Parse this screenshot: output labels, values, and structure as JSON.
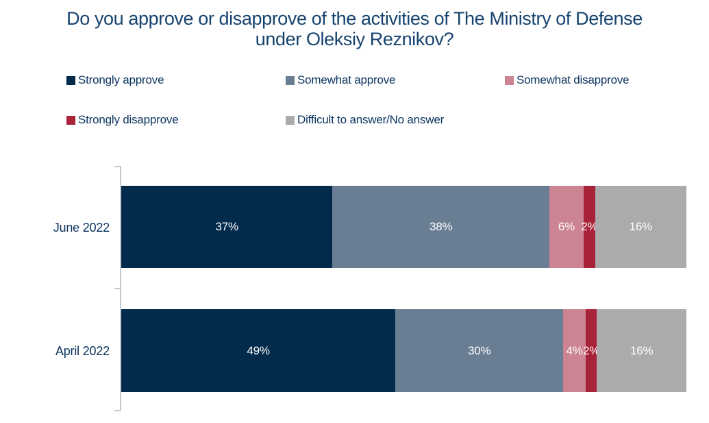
{
  "title_lines": [
    "Do you approve or disapprove of the activities of The Ministry of Defense",
    "under Oleksiy Reznikov?"
  ],
  "colors": {
    "title_text": "#16436f",
    "legend_text": "#0e3560",
    "category_text": "#0e3560",
    "axis_line": "#c4c8cf",
    "bar_value_text": "#ffffff",
    "background": "#ffffff"
  },
  "chart_data": {
    "type": "bar",
    "stacked": true,
    "orientation": "horizontal",
    "title": "Do you approve or disapprove of the activities of The Ministry of Defense under Oleksiy Reznikov?",
    "categories": [
      "June 2022",
      "April 2022"
    ],
    "series": [
      {
        "name": "Strongly approve",
        "color": "#022a4a",
        "values": [
          37,
          49
        ]
      },
      {
        "name": "Somewhat approve",
        "color": "#697e93",
        "values": [
          38,
          30
        ]
      },
      {
        "name": "Somewhat disapprove",
        "color": "#cc8492",
        "values": [
          6,
          4
        ]
      },
      {
        "name": "Strongly disapprove",
        "color": "#a82339",
        "values": [
          2,
          2
        ]
      },
      {
        "name": "Difficult to answer/No answer",
        "color": "#ababad",
        "values": [
          16,
          16
        ]
      }
    ],
    "data_labels": {
      "June 2022": [
        "37%",
        "38%",
        "6%",
        "2%",
        "16%"
      ],
      "April 2022": [
        "49%",
        "30%",
        "4%",
        "2%",
        "16%"
      ]
    },
    "value_suffix": "%",
    "xlim": [
      0,
      100
    ],
    "grid": false,
    "legend_position": "top"
  }
}
